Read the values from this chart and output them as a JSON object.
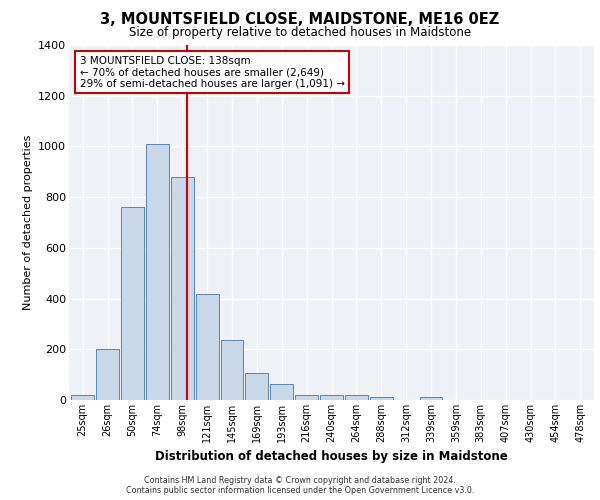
{
  "title": "3, MOUNTSFIELD CLOSE, MAIDSTONE, ME16 0EZ",
  "subtitle": "Size of property relative to detached houses in Maidstone",
  "xlabel": "Distribution of detached houses by size in Maidstone",
  "ylabel": "Number of detached properties",
  "categories": [
    "25sqm",
    "26sqm",
    "50sqm",
    "74sqm",
    "98sqm",
    "121sqm",
    "145sqm",
    "169sqm",
    "193sqm",
    "216sqm",
    "240sqm",
    "264sqm",
    "288sqm",
    "312sqm",
    "339sqm",
    "359sqm",
    "383sqm",
    "407sqm",
    "430sqm",
    "454sqm",
    "478sqm"
  ],
  "bar_values": [
    20,
    200,
    760,
    1010,
    880,
    420,
    235,
    105,
    65,
    20,
    20,
    20,
    10,
    0,
    10,
    0,
    0,
    0,
    0,
    0,
    0
  ],
  "bar_color": "#c8d8e8",
  "bar_edge_color": "#5585b5",
  "ylim": [
    0,
    1400
  ],
  "yticks": [
    0,
    200,
    400,
    600,
    800,
    1000,
    1200,
    1400
  ],
  "marker_label_line1": "3 MOUNTSFIELD CLOSE: 138sqm",
  "marker_label_line2": "← 70% of detached houses are smaller (2,649)",
  "marker_label_line3": "29% of semi-detached houses are larger (1,091) →",
  "vline_color": "#cc0000",
  "annotation_box_color": "#cc0000",
  "background_color": "#eef2f7",
  "footer_line1": "Contains HM Land Registry data © Crown copyright and database right 2024.",
  "footer_line2": "Contains public sector information licensed under the Open Government Licence v3.0."
}
